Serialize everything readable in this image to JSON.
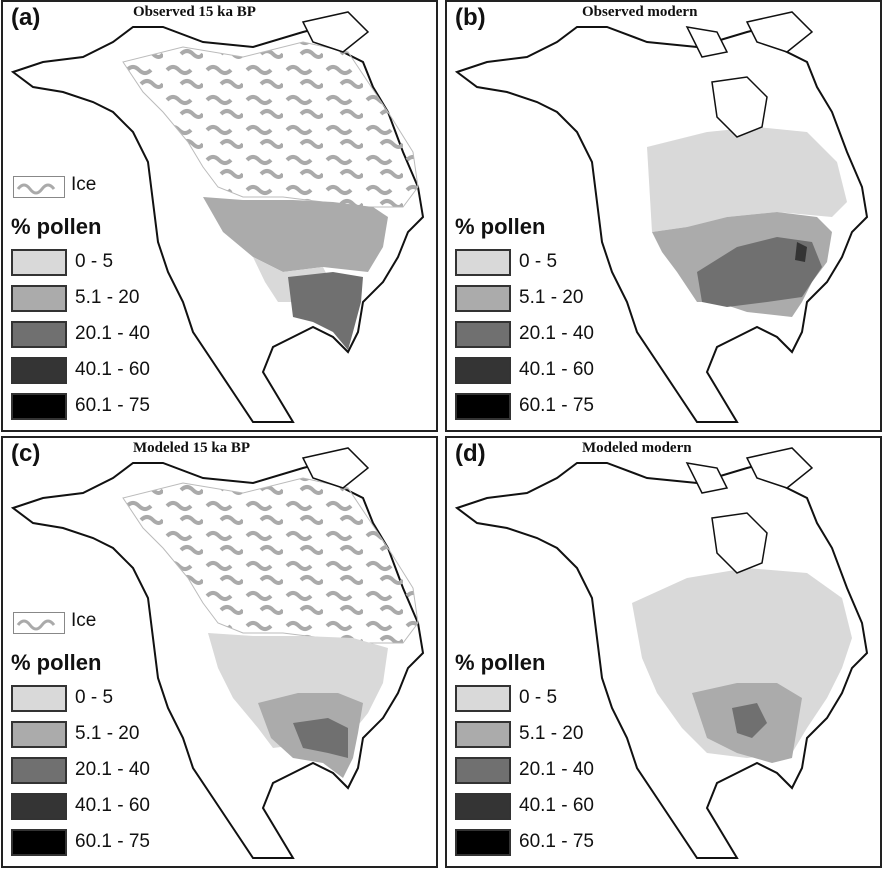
{
  "panels": [
    {
      "label": "(a)",
      "title": "Observed 15 ka BP",
      "ice": true
    },
    {
      "label": "(b)",
      "title": "Observed modern",
      "ice": false
    },
    {
      "label": "(c)",
      "title": "Modeled 15 ka BP",
      "ice": true
    },
    {
      "label": "(d)",
      "title": "Modeled modern",
      "ice": false
    }
  ],
  "legend": {
    "ice_label": "Ice",
    "title": "% pollen",
    "classes": [
      {
        "range": "0 - 5",
        "color": "#d9d9d9"
      },
      {
        "range": "5.1 - 20",
        "color": "#ababab"
      },
      {
        "range": "20.1 - 40",
        "color": "#707070"
      },
      {
        "range": "40.1 - 60",
        "color": "#343434"
      },
      {
        "range": "60.1 - 75",
        "color": "#000000"
      }
    ]
  }
}
